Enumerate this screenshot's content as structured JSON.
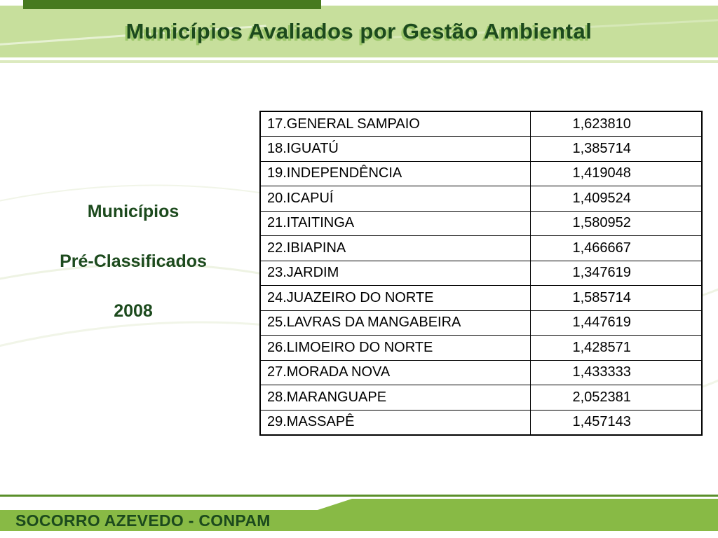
{
  "header": {
    "title": "Municípios Avaliados por Gestão Ambiental"
  },
  "sidebar": {
    "lines": [
      "Municípios",
      "Pré-Classificados",
      "2008"
    ]
  },
  "table": {
    "rows": [
      [
        "17.GENERAL SAMPAIO",
        "1,623810"
      ],
      [
        "18.IGUATÚ",
        "1,385714"
      ],
      [
        "19.INDEPENDÊNCIA",
        "1,419048"
      ],
      [
        "20.ICAPUÍ",
        "1,409524"
      ],
      [
        "21.ITAITINGA",
        "1,580952"
      ],
      [
        "22.IBIAPINA",
        "1,466667"
      ],
      [
        "23.JARDIM",
        "1,347619"
      ],
      [
        "24.JUAZEIRO DO NORTE",
        "1,585714"
      ],
      [
        "25.LAVRAS DA MANGABEIRA",
        "1,447619"
      ],
      [
        "26.LIMOEIRO DO NORTE",
        "1,428571"
      ],
      [
        "27.MORADA NOVA",
        "1,433333"
      ],
      [
        "28.MARANGUAPE",
        "2,052381"
      ],
      [
        "29.MASSAPÊ",
        "1,457143"
      ]
    ]
  },
  "footer": {
    "credit": "SOCORRO AZEVEDO - CONPAM"
  },
  "colors": {
    "header_bg": "#c7df9c",
    "header_top_bar": "#477a1f",
    "title_color": "#1c4a1d",
    "title_shadow": "#9cc76a",
    "sidebar_text": "#1c4a1d",
    "table_border": "#000000",
    "footer_line": "#5a8f2a",
    "footer_band": "#88ba45",
    "footer_text": "#1c4a1d"
  }
}
